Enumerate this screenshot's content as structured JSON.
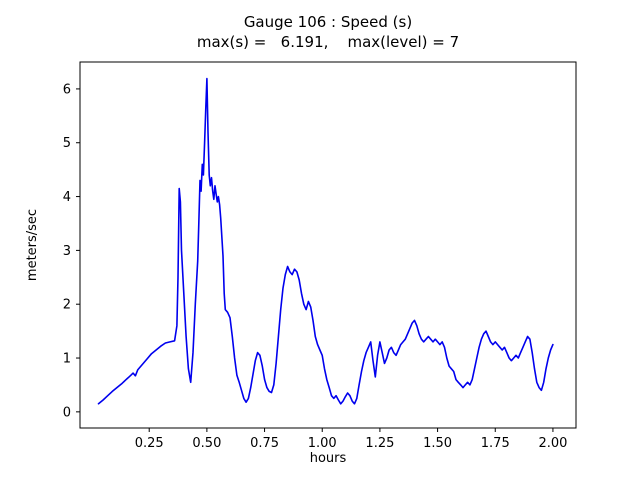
{
  "chart_data": {
    "type": "line",
    "title": "Gauge 106 : Speed (s)",
    "subtitle": "max(s) =   6.191,    max(level) = 7",
    "xlabel": "hours",
    "ylabel": "meters/sec",
    "xlim": [
      -0.05,
      2.1
    ],
    "ylim": [
      -0.3,
      6.5
    ],
    "xticks": [
      0.25,
      0.5,
      0.75,
      1.0,
      1.25,
      1.5,
      1.75,
      2.0
    ],
    "xtick_labels": [
      "0.25",
      "0.50",
      "0.75",
      "1.00",
      "1.25",
      "1.50",
      "1.75",
      "2.00"
    ],
    "yticks": [
      0,
      1,
      2,
      3,
      4,
      5,
      6
    ],
    "ytick_labels": [
      "0",
      "1",
      "2",
      "3",
      "4",
      "5",
      "6"
    ],
    "grid": false,
    "legend": "none",
    "line_color": "#0000ee",
    "line_width": 1.6,
    "axis_color": "#000000",
    "max_speed": 6.191,
    "max_level": 7,
    "series": [
      {
        "name": "speed",
        "points": [
          [
            0.03,
            0.15
          ],
          [
            0.05,
            0.22
          ],
          [
            0.07,
            0.3
          ],
          [
            0.09,
            0.38
          ],
          [
            0.11,
            0.45
          ],
          [
            0.13,
            0.52
          ],
          [
            0.15,
            0.6
          ],
          [
            0.17,
            0.68
          ],
          [
            0.18,
            0.72
          ],
          [
            0.19,
            0.67
          ],
          [
            0.2,
            0.78
          ],
          [
            0.22,
            0.88
          ],
          [
            0.24,
            0.98
          ],
          [
            0.26,
            1.08
          ],
          [
            0.28,
            1.15
          ],
          [
            0.3,
            1.22
          ],
          [
            0.32,
            1.28
          ],
          [
            0.34,
            1.3
          ],
          [
            0.36,
            1.32
          ],
          [
            0.37,
            1.6
          ],
          [
            0.375,
            2.5
          ],
          [
            0.38,
            4.15
          ],
          [
            0.385,
            3.9
          ],
          [
            0.39,
            3.0
          ],
          [
            0.4,
            2.2
          ],
          [
            0.41,
            1.4
          ],
          [
            0.42,
            0.8
          ],
          [
            0.43,
            0.55
          ],
          [
            0.44,
            1.1
          ],
          [
            0.45,
            2.0
          ],
          [
            0.46,
            2.8
          ],
          [
            0.465,
            3.5
          ],
          [
            0.47,
            4.3
          ],
          [
            0.475,
            4.1
          ],
          [
            0.48,
            4.6
          ],
          [
            0.485,
            4.4
          ],
          [
            0.49,
            5.0
          ],
          [
            0.495,
            5.6
          ],
          [
            0.5,
            6.191
          ],
          [
            0.505,
            5.2
          ],
          [
            0.51,
            4.4
          ],
          [
            0.515,
            4.2
          ],
          [
            0.52,
            4.35
          ],
          [
            0.525,
            4.1
          ],
          [
            0.53,
            3.95
          ],
          [
            0.535,
            4.2
          ],
          [
            0.54,
            4.05
          ],
          [
            0.545,
            3.9
          ],
          [
            0.55,
            4.0
          ],
          [
            0.555,
            3.85
          ],
          [
            0.56,
            3.6
          ],
          [
            0.57,
            2.9
          ],
          [
            0.575,
            2.2
          ],
          [
            0.58,
            1.9
          ],
          [
            0.59,
            1.85
          ],
          [
            0.6,
            1.75
          ],
          [
            0.61,
            1.4
          ],
          [
            0.62,
            1.0
          ],
          [
            0.63,
            0.68
          ],
          [
            0.64,
            0.55
          ],
          [
            0.65,
            0.4
          ],
          [
            0.66,
            0.25
          ],
          [
            0.67,
            0.18
          ],
          [
            0.68,
            0.25
          ],
          [
            0.69,
            0.45
          ],
          [
            0.7,
            0.7
          ],
          [
            0.71,
            0.95
          ],
          [
            0.72,
            1.1
          ],
          [
            0.73,
            1.05
          ],
          [
            0.74,
            0.85
          ],
          [
            0.75,
            0.6
          ],
          [
            0.76,
            0.45
          ],
          [
            0.77,
            0.38
          ],
          [
            0.78,
            0.36
          ],
          [
            0.79,
            0.5
          ],
          [
            0.8,
            0.9
          ],
          [
            0.81,
            1.4
          ],
          [
            0.82,
            1.9
          ],
          [
            0.83,
            2.3
          ],
          [
            0.84,
            2.55
          ],
          [
            0.85,
            2.7
          ],
          [
            0.86,
            2.6
          ],
          [
            0.87,
            2.55
          ],
          [
            0.88,
            2.65
          ],
          [
            0.89,
            2.6
          ],
          [
            0.9,
            2.45
          ],
          [
            0.91,
            2.2
          ],
          [
            0.92,
            2.0
          ],
          [
            0.93,
            1.9
          ],
          [
            0.94,
            2.05
          ],
          [
            0.95,
            1.95
          ],
          [
            0.96,
            1.7
          ],
          [
            0.97,
            1.4
          ],
          [
            0.98,
            1.25
          ],
          [
            0.99,
            1.15
          ],
          [
            1.0,
            1.05
          ],
          [
            1.01,
            0.8
          ],
          [
            1.02,
            0.6
          ],
          [
            1.03,
            0.45
          ],
          [
            1.04,
            0.3
          ],
          [
            1.05,
            0.25
          ],
          [
            1.06,
            0.3
          ],
          [
            1.07,
            0.22
          ],
          [
            1.08,
            0.15
          ],
          [
            1.09,
            0.2
          ],
          [
            1.1,
            0.28
          ],
          [
            1.11,
            0.35
          ],
          [
            1.12,
            0.3
          ],
          [
            1.13,
            0.2
          ],
          [
            1.14,
            0.15
          ],
          [
            1.15,
            0.25
          ],
          [
            1.16,
            0.5
          ],
          [
            1.17,
            0.75
          ],
          [
            1.18,
            0.95
          ],
          [
            1.19,
            1.1
          ],
          [
            1.2,
            1.2
          ],
          [
            1.21,
            1.3
          ],
          [
            1.22,
            0.95
          ],
          [
            1.23,
            0.65
          ],
          [
            1.24,
            1.05
          ],
          [
            1.25,
            1.3
          ],
          [
            1.26,
            1.1
          ],
          [
            1.27,
            0.9
          ],
          [
            1.28,
            1.0
          ],
          [
            1.29,
            1.15
          ],
          [
            1.3,
            1.2
          ],
          [
            1.31,
            1.1
          ],
          [
            1.32,
            1.05
          ],
          [
            1.33,
            1.15
          ],
          [
            1.34,
            1.25
          ],
          [
            1.35,
            1.3
          ],
          [
            1.36,
            1.35
          ],
          [
            1.37,
            1.45
          ],
          [
            1.38,
            1.55
          ],
          [
            1.39,
            1.65
          ],
          [
            1.4,
            1.7
          ],
          [
            1.41,
            1.6
          ],
          [
            1.42,
            1.45
          ],
          [
            1.43,
            1.35
          ],
          [
            1.44,
            1.3
          ],
          [
            1.45,
            1.35
          ],
          [
            1.46,
            1.4
          ],
          [
            1.47,
            1.35
          ],
          [
            1.48,
            1.3
          ],
          [
            1.49,
            1.35
          ],
          [
            1.5,
            1.3
          ],
          [
            1.51,
            1.25
          ],
          [
            1.52,
            1.3
          ],
          [
            1.53,
            1.2
          ],
          [
            1.54,
            1.0
          ],
          [
            1.55,
            0.85
          ],
          [
            1.56,
            0.8
          ],
          [
            1.57,
            0.75
          ],
          [
            1.58,
            0.6
          ],
          [
            1.59,
            0.55
          ],
          [
            1.6,
            0.5
          ],
          [
            1.61,
            0.45
          ],
          [
            1.62,
            0.5
          ],
          [
            1.63,
            0.55
          ],
          [
            1.64,
            0.5
          ],
          [
            1.65,
            0.6
          ],
          [
            1.66,
            0.8
          ],
          [
            1.67,
            1.0
          ],
          [
            1.68,
            1.2
          ],
          [
            1.69,
            1.35
          ],
          [
            1.7,
            1.45
          ],
          [
            1.71,
            1.5
          ],
          [
            1.72,
            1.4
          ],
          [
            1.73,
            1.3
          ],
          [
            1.74,
            1.25
          ],
          [
            1.75,
            1.3
          ],
          [
            1.76,
            1.25
          ],
          [
            1.77,
            1.2
          ],
          [
            1.78,
            1.15
          ],
          [
            1.79,
            1.2
          ],
          [
            1.8,
            1.1
          ],
          [
            1.81,
            1.0
          ],
          [
            1.82,
            0.95
          ],
          [
            1.83,
            1.0
          ],
          [
            1.84,
            1.05
          ],
          [
            1.85,
            1.0
          ],
          [
            1.86,
            1.1
          ],
          [
            1.87,
            1.2
          ],
          [
            1.88,
            1.3
          ],
          [
            1.89,
            1.4
          ],
          [
            1.9,
            1.35
          ],
          [
            1.91,
            1.1
          ],
          [
            1.92,
            0.8
          ],
          [
            1.93,
            0.55
          ],
          [
            1.94,
            0.45
          ],
          [
            1.95,
            0.4
          ],
          [
            1.96,
            0.55
          ],
          [
            1.97,
            0.8
          ],
          [
            1.98,
            1.0
          ],
          [
            1.99,
            1.15
          ],
          [
            2.0,
            1.25
          ]
        ]
      }
    ]
  }
}
